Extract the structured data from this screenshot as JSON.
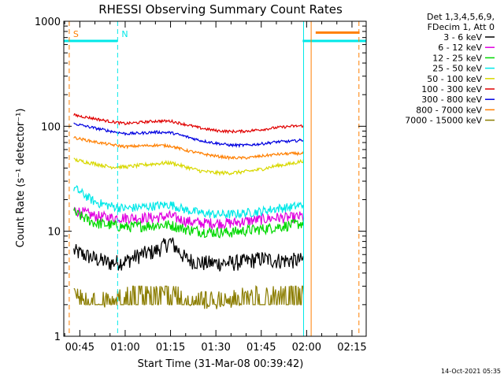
{
  "chart_data": {
    "type": "line",
    "title": "RHESSI Observing Summary Count Rates",
    "xlabel": "Start Time (31-Mar-08 00:39:42)",
    "ylabel": "Count Rate (s⁻¹ detector⁻¹)",
    "yscale": "log",
    "ylim": [
      1,
      1000
    ],
    "xlim_minutes": [
      39.7,
      139.7
    ],
    "x_tick_minutes": [
      45,
      60,
      75,
      90,
      105,
      120,
      135
    ],
    "x_tick_labels": [
      "00:45",
      "01:00",
      "01:15",
      "01:30",
      "01:45",
      "02:00",
      "02:15"
    ],
    "y_tick_values": [
      1,
      10,
      100,
      1000
    ],
    "y_tick_labels": [
      "1",
      "10",
      "100",
      "1000"
    ],
    "legend_header": [
      "Det 1,3,4,5,6,9,",
      "FDecim 1, Att 0"
    ],
    "time_points_minutes": [
      43,
      50,
      55,
      60,
      65,
      70,
      75,
      80,
      85,
      90,
      95,
      100,
      105,
      110,
      115,
      119
    ],
    "series": [
      {
        "name": "3 - 6 keV",
        "color": "#000000",
        "values": [
          6.5,
          5.5,
          5,
          5.2,
          6,
          6.5,
          8,
          5.5,
          5,
          5,
          5,
          5.2,
          5.5,
          5.3,
          5.3,
          5.3
        ]
      },
      {
        "name": "6 - 12 keV",
        "color": "#e000e0",
        "values": [
          16,
          14,
          13.5,
          13.5,
          13.5,
          13.5,
          14,
          12.5,
          12,
          12,
          12,
          12.5,
          13,
          13.5,
          13.5,
          14
        ]
      },
      {
        "name": "12 - 25 keV",
        "color": "#00d800",
        "values": [
          15,
          12,
          11.5,
          11,
          11.2,
          11.5,
          11.5,
          10.5,
          10,
          9.8,
          9.8,
          10.2,
          10.5,
          11,
          11.5,
          12
        ]
      },
      {
        "name": "25 - 50 keV",
        "color": "#00e8e8",
        "values": [
          26,
          19,
          17.5,
          16.5,
          17,
          17.5,
          18,
          16,
          15,
          14.5,
          14.5,
          15,
          15.5,
          16.5,
          17,
          18
        ]
      },
      {
        "name": "50 - 100 keV",
        "color": "#d8d800",
        "values": [
          48,
          44,
          41,
          41,
          42.5,
          44,
          45,
          41,
          37.5,
          36,
          36,
          37,
          39,
          42,
          44,
          47
        ]
      },
      {
        "name": "100 - 300 keV",
        "color": "#e00000",
        "values": [
          128,
          118,
          111,
          106,
          109,
          112,
          112,
          104,
          96,
          91,
          89,
          90,
          93,
          97,
          100,
          101
        ]
      },
      {
        "name": "300 - 800 keV",
        "color": "#0000e0",
        "values": [
          106,
          96,
          90,
          85,
          86,
          88,
          87,
          80,
          73,
          69,
          66,
          66,
          68,
          71,
          72,
          74
        ]
      },
      {
        "name": "800 - 7000 keV",
        "color": "#ff7f00",
        "values": [
          78,
          71,
          67,
          64,
          65,
          66,
          65,
          59,
          55,
          52,
          50,
          50,
          52,
          54,
          55,
          55
        ]
      },
      {
        "name": "7000 - 15000 keV",
        "color": "#8b7d00",
        "values": [
          2,
          1.8,
          1.8,
          2,
          2.4,
          2.4,
          2.4,
          2,
          1.8,
          1.8,
          1.8,
          2,
          2.4,
          2.4,
          2.4,
          2.4
        ]
      }
    ],
    "flag_bars": [
      {
        "name": "SAA",
        "color": "#00e8e8",
        "start_minutes": 39.7,
        "end_minutes": 57.5,
        "level": 650
      },
      {
        "name": "SAA",
        "color": "#00e8e8",
        "start_minutes": 118.7,
        "end_minutes": 139.7,
        "level": 650
      },
      {
        "name": "Attenuator",
        "color": "#ff7f00",
        "start_minutes": 123,
        "end_minutes": 137.5,
        "level": 780
      }
    ],
    "event_lines": [
      {
        "name": "S",
        "color": "#ff7f00",
        "minutes": 41.5,
        "style": "dashed",
        "label": "S"
      },
      {
        "name": "N",
        "color": "#00e8e8",
        "minutes": 57.5,
        "style": "dashed",
        "label": "N"
      },
      {
        "name": "eclipse-start-1",
        "color": "#00e8e8",
        "minutes": 119,
        "style": "solid",
        "label": ""
      },
      {
        "name": "eclipse-start-2",
        "color": "#ff7f00",
        "minutes": 121.5,
        "style": "solid",
        "label": ""
      },
      {
        "name": "eclipse-end",
        "color": "#ff7f00",
        "minutes": 137.3,
        "style": "dashed",
        "label": ""
      }
    ]
  },
  "footer": {
    "timestamp": "14-Oct-2021 05:35"
  }
}
